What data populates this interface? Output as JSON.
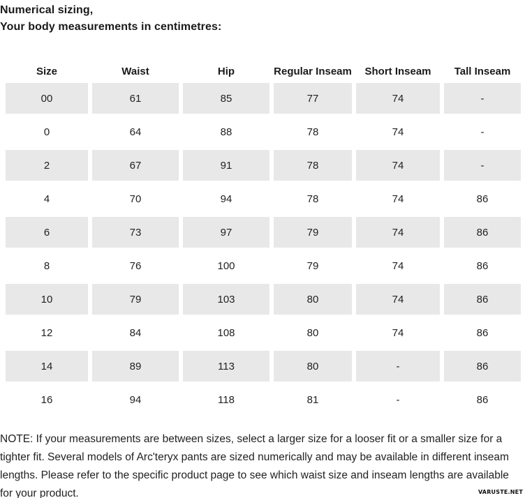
{
  "header": {
    "title_line1": "Numerical sizing,",
    "title_line2": "Your body measurements in centimetres:"
  },
  "table": {
    "columns": [
      "Size",
      "Waist",
      "Hip",
      "Regular Inseam",
      "Short Inseam",
      "Tall Inseam"
    ],
    "rows": [
      [
        "00",
        "61",
        "85",
        "77",
        "74",
        "-"
      ],
      [
        "0",
        "64",
        "88",
        "78",
        "74",
        "-"
      ],
      [
        "2",
        "67",
        "91",
        "78",
        "74",
        "-"
      ],
      [
        "4",
        "70",
        "94",
        "78",
        "74",
        "86"
      ],
      [
        "6",
        "73",
        "97",
        "79",
        "74",
        "86"
      ],
      [
        "8",
        "76",
        "100",
        "79",
        "74",
        "86"
      ],
      [
        "10",
        "79",
        "103",
        "80",
        "74",
        "86"
      ],
      [
        "12",
        "84",
        "108",
        "80",
        "74",
        "86"
      ],
      [
        "14",
        "89",
        "113",
        "80",
        "-",
        "86"
      ],
      [
        "16",
        "94",
        "118",
        "81",
        "-",
        "86"
      ]
    ],
    "stripe_color": "#e8e8e8"
  },
  "note": {
    "text": "NOTE: If your measurements are between sizes, select a larger size for a looser fit or a smaller size for a tighter fit. Several models of Arc'teryx pants are sized numerically and may be available in different inseam lengths. Please refer to the specific product page to see which waist size and inseam lengths are available for your product."
  },
  "watermark": {
    "text": "VARUSTE.NET"
  }
}
